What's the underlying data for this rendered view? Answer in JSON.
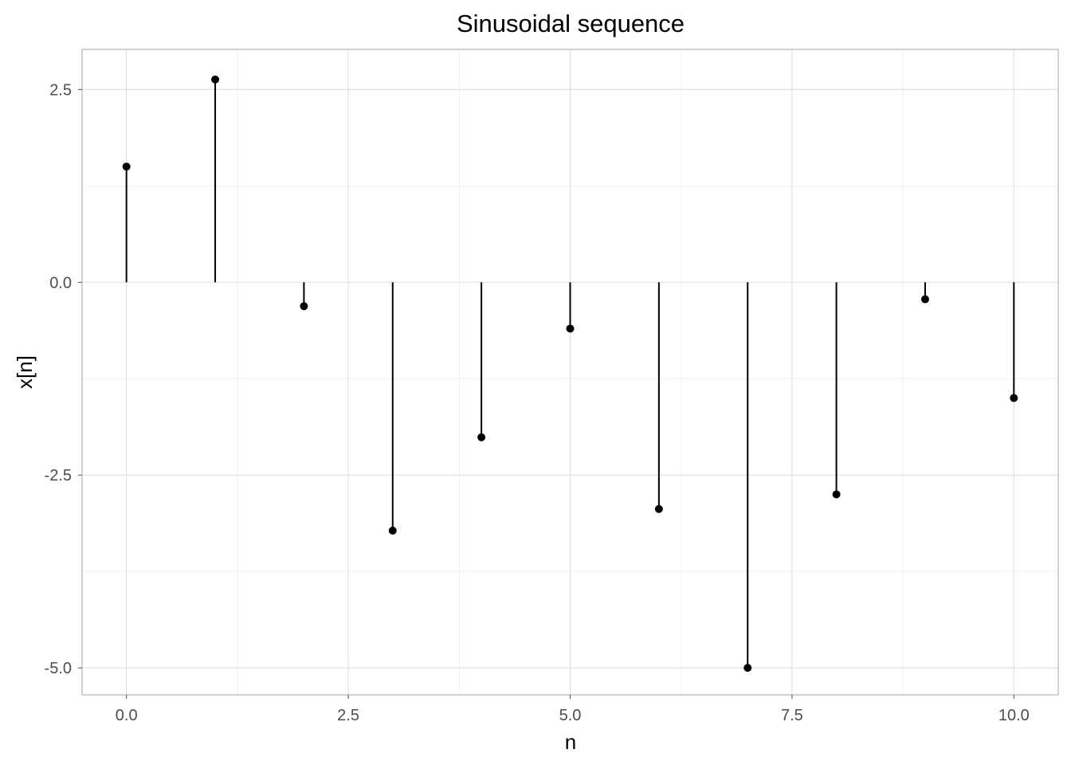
{
  "chart_data": {
    "type": "stem",
    "title": "Sinusoidal sequence",
    "xlabel": "n",
    "ylabel": "x[n]",
    "x": [
      0,
      1,
      2,
      3,
      4,
      5,
      6,
      7,
      8,
      9,
      10
    ],
    "values": [
      1.5,
      2.63,
      -0.31,
      -3.22,
      -2.01,
      -0.6,
      -2.94,
      -5.0,
      -2.75,
      -0.22,
      -1.5
    ],
    "xlim": [
      -0.5,
      10.5
    ],
    "ylim": [
      -5.35,
      3.02
    ],
    "x_ticks": [
      0,
      2.5,
      5,
      7.5,
      10
    ],
    "x_tick_labels": [
      "0.0",
      "2.5",
      "5.0",
      "7.5",
      "10.0"
    ],
    "y_ticks": [
      2.5,
      0,
      -2.5,
      -5
    ],
    "y_tick_labels": [
      "2.5",
      "0.0",
      "-2.5",
      "-5.0"
    ],
    "grid": true,
    "colors": {
      "marks": "#000000",
      "grid": "#dedede"
    }
  }
}
